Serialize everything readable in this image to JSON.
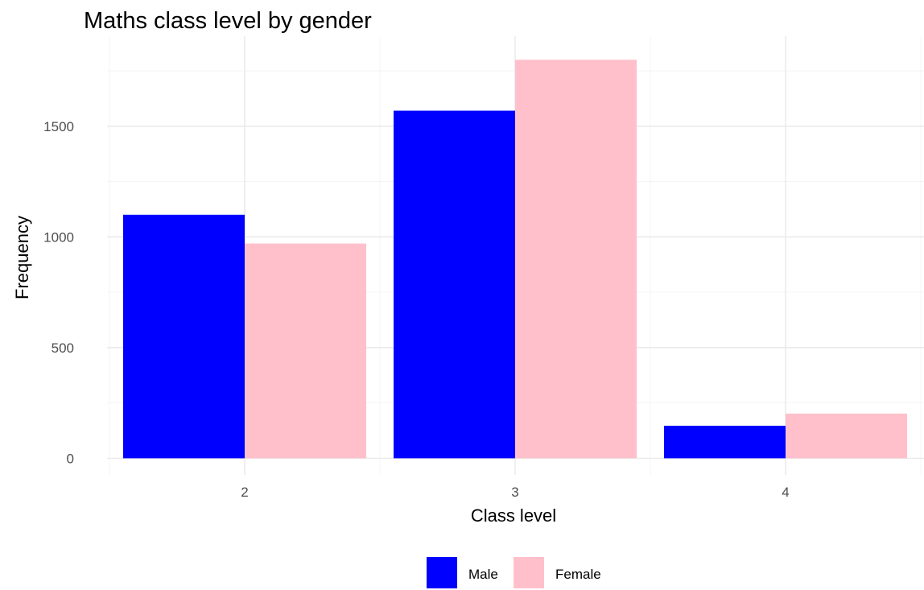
{
  "chart_data": {
    "type": "bar",
    "title": "Maths class level by gender",
    "xlabel": "Class level",
    "ylabel": "Frequency",
    "categories": [
      "2",
      "3",
      "4"
    ],
    "series": [
      {
        "name": "Male",
        "color": "#0000ff",
        "values": [
          1100,
          1570,
          147
        ]
      },
      {
        "name": "Female",
        "color": "#ffc0cb",
        "values": [
          970,
          1800,
          202
        ]
      }
    ],
    "ylim": [
      -75,
      1870
    ],
    "yticks": [
      0,
      500,
      1000,
      1500
    ],
    "grid": true,
    "legend_position": "bottom"
  }
}
